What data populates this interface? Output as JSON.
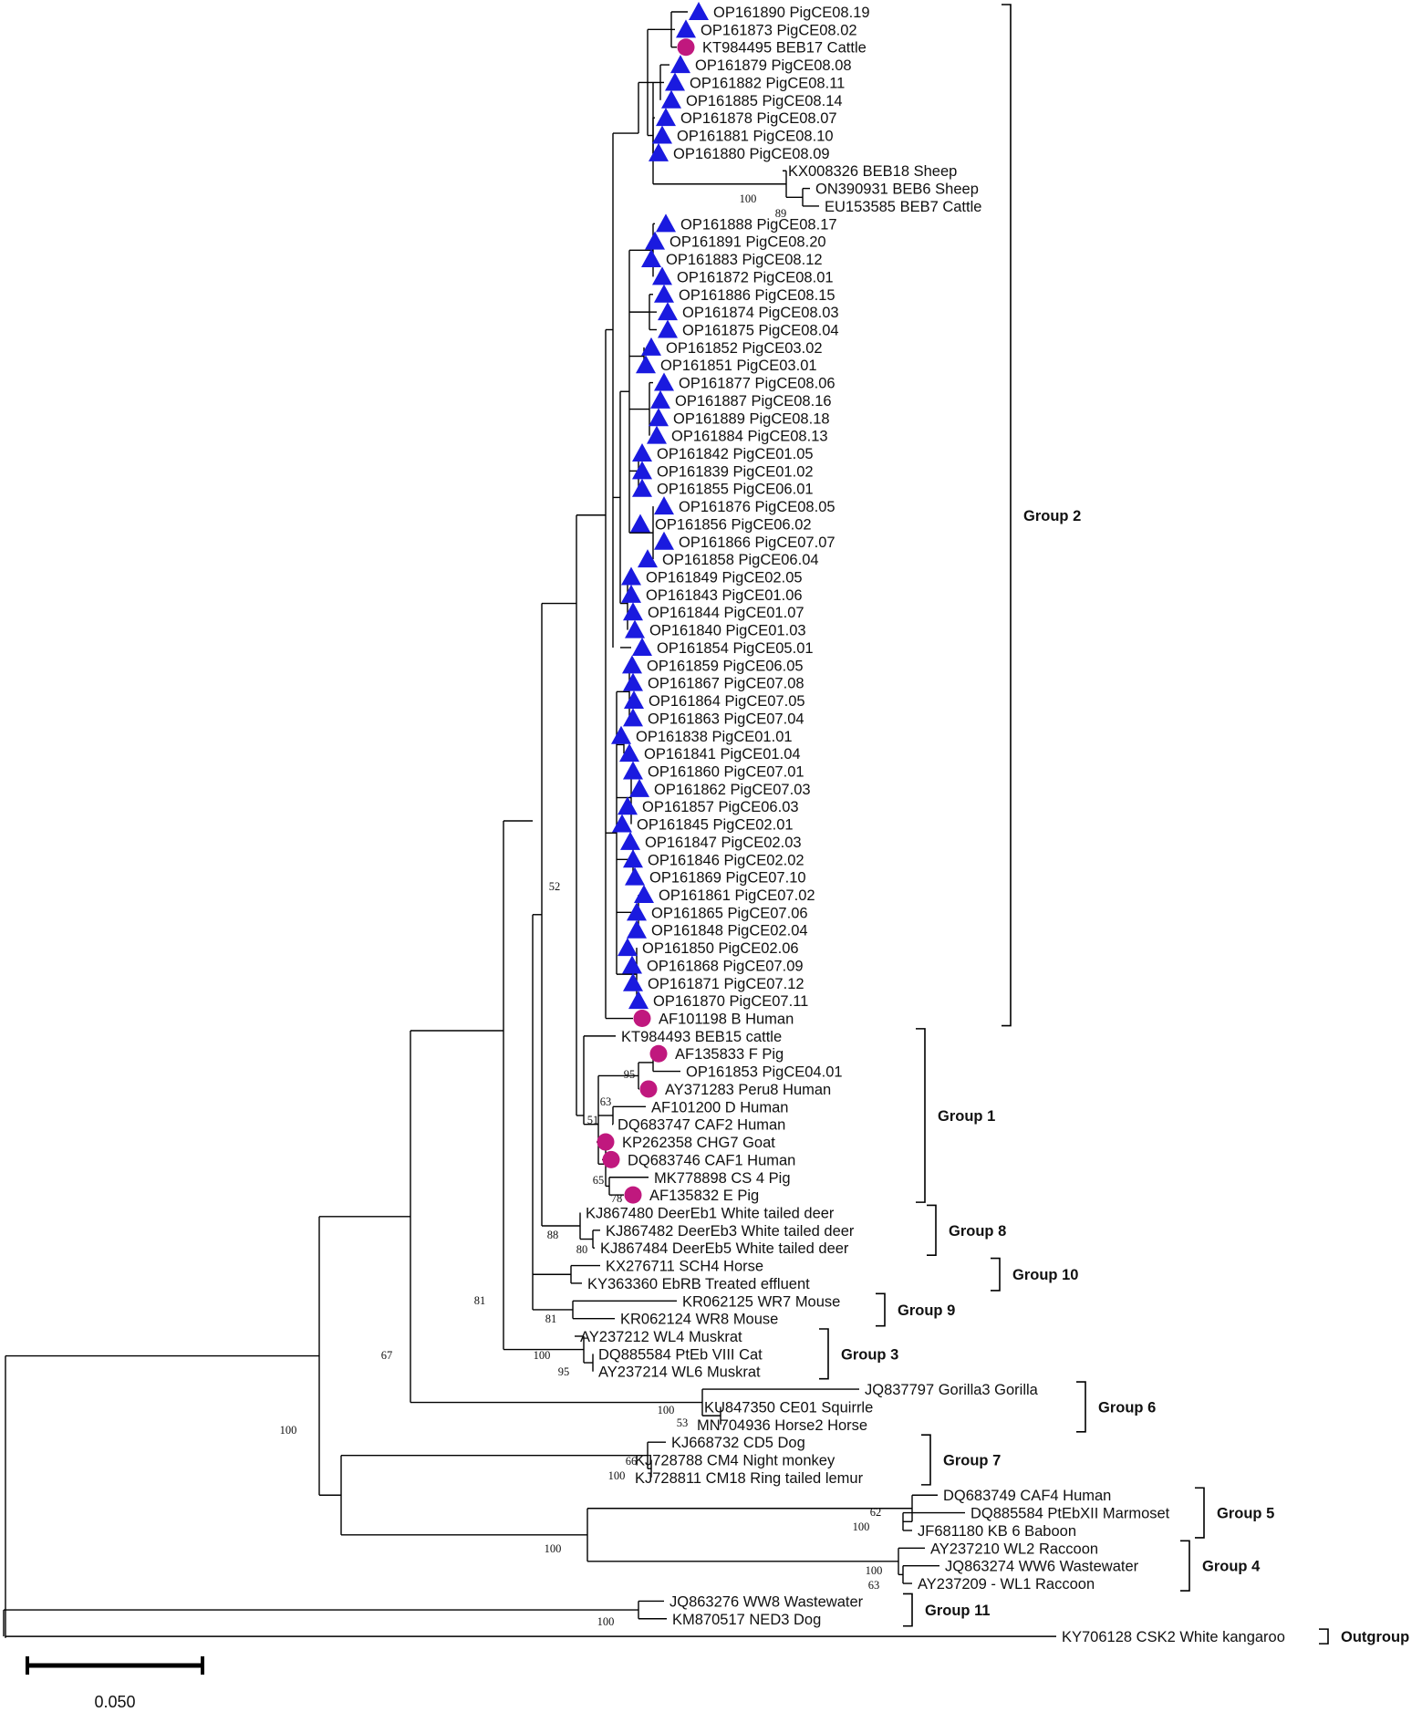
{
  "marker_colors": {
    "triangle": "#1a1adf",
    "circle": "#c0187e"
  },
  "tips": [
    {
      "label": "OP161890 PigCE08.19",
      "marker": "triangle"
    },
    {
      "label": "OP161873 PigCE08.02",
      "marker": "triangle"
    },
    {
      "label": "KT984495 BEB17 Cattle",
      "marker": "circle"
    },
    {
      "label": "OP161879 PigCE08.08",
      "marker": "triangle"
    },
    {
      "label": "OP161882 PigCE08.11",
      "marker": "triangle"
    },
    {
      "label": "OP161885 PigCE08.14",
      "marker": "triangle"
    },
    {
      "label": "OP161878 PigCE08.07",
      "marker": "triangle"
    },
    {
      "label": "OP161881 PigCE08.10",
      "marker": "triangle"
    },
    {
      "label": "OP161880 PigCE08.09",
      "marker": "triangle"
    },
    {
      "label": "KX008326 BEB18 Sheep",
      "marker": ""
    },
    {
      "label": "ON390931 BEB6 Sheep",
      "marker": ""
    },
    {
      "label": "EU153585 BEB7 Cattle",
      "marker": ""
    },
    {
      "label": "OP161888 PigCE08.17",
      "marker": "triangle"
    },
    {
      "label": "OP161891 PigCE08.20",
      "marker": "triangle"
    },
    {
      "label": "OP161883 PigCE08.12",
      "marker": "triangle"
    },
    {
      "label": "OP161872 PigCE08.01",
      "marker": "triangle"
    },
    {
      "label": "OP161886 PigCE08.15",
      "marker": "triangle"
    },
    {
      "label": "OP161874 PigCE08.03",
      "marker": "triangle"
    },
    {
      "label": "OP161875 PigCE08.04",
      "marker": "triangle"
    },
    {
      "label": "OP161852 PigCE03.02",
      "marker": "triangle"
    },
    {
      "label": "OP161851 PigCE03.01",
      "marker": "triangle"
    },
    {
      "label": "OP161877 PigCE08.06",
      "marker": "triangle"
    },
    {
      "label": "OP161887 PigCE08.16",
      "marker": "triangle"
    },
    {
      "label": "OP161889 PigCE08.18",
      "marker": "triangle"
    },
    {
      "label": "OP161884 PigCE08.13",
      "marker": "triangle"
    },
    {
      "label": "OP161842 PigCE01.05",
      "marker": "triangle"
    },
    {
      "label": "OP161839 PigCE01.02",
      "marker": "triangle"
    },
    {
      "label": "OP161855 PigCE06.01",
      "marker": "triangle"
    },
    {
      "label": "OP161876 PigCE08.05",
      "marker": "triangle"
    },
    {
      "label": "OP161856 PigCE06.02",
      "marker": "triangle"
    },
    {
      "label": "OP161866 PigCE07.07",
      "marker": "triangle"
    },
    {
      "label": "OP161858 PigCE06.04",
      "marker": "triangle"
    },
    {
      "label": "OP161849 PigCE02.05",
      "marker": "triangle"
    },
    {
      "label": "OP161843 PigCE01.06",
      "marker": "triangle"
    },
    {
      "label": "OP161844 PigCE01.07",
      "marker": "triangle"
    },
    {
      "label": "OP161840 PigCE01.03",
      "marker": "triangle"
    },
    {
      "label": "OP161854 PigCE05.01",
      "marker": "triangle"
    },
    {
      "label": "OP161859 PigCE06.05",
      "marker": "triangle"
    },
    {
      "label": "OP161867 PigCE07.08",
      "marker": "triangle"
    },
    {
      "label": "OP161864 PigCE07.05",
      "marker": "triangle"
    },
    {
      "label": "OP161863 PigCE07.04",
      "marker": "triangle"
    },
    {
      "label": "OP161838 PigCE01.01",
      "marker": "triangle"
    },
    {
      "label": "OP161841 PigCE01.04",
      "marker": "triangle"
    },
    {
      "label": "OP161860 PigCE07.01",
      "marker": "triangle"
    },
    {
      "label": "OP161862 PigCE07.03",
      "marker": "triangle"
    },
    {
      "label": "OP161857 PigCE06.03",
      "marker": "triangle"
    },
    {
      "label": "OP161845 PigCE02.01",
      "marker": "triangle"
    },
    {
      "label": "OP161847 PigCE02.03",
      "marker": "triangle"
    },
    {
      "label": "OP161846 PigCE02.02",
      "marker": "triangle"
    },
    {
      "label": "OP161869 PigCE07.10",
      "marker": "triangle"
    },
    {
      "label": "OP161861 PigCE07.02",
      "marker": "triangle"
    },
    {
      "label": "OP161865 PigCE07.06",
      "marker": "triangle"
    },
    {
      "label": "OP161848 PigCE02.04",
      "marker": "triangle"
    },
    {
      "label": "OP161850 PigCE02.06",
      "marker": "triangle"
    },
    {
      "label": "OP161868 PigCE07.09",
      "marker": "triangle"
    },
    {
      "label": "OP161871 PigCE07.12",
      "marker": "triangle"
    },
    {
      "label": "OP161870 PigCE07.11",
      "marker": "triangle"
    },
    {
      "label": "AF101198 B Human",
      "marker": "circle"
    },
    {
      "label": "KT984493 BEB15 cattle",
      "marker": ""
    },
    {
      "label": "AF135833 F Pig",
      "marker": "circle"
    },
    {
      "label": "OP161853 PigCE04.01",
      "marker": ""
    },
    {
      "label": "AY371283 Peru8 Human",
      "marker": "circle"
    },
    {
      "label": "AF101200 D Human",
      "marker": ""
    },
    {
      "label": "DQ683747 CAF2 Human",
      "marker": ""
    },
    {
      "label": "KP262358 CHG7 Goat",
      "marker": "circle"
    },
    {
      "label": "DQ683746 CAF1 Human",
      "marker": "circle"
    },
    {
      "label": "MK778898 CS 4 Pig",
      "marker": ""
    },
    {
      "label": "AF135832 E Pig",
      "marker": "circle"
    },
    {
      "label": "KJ867480 DeerEb1 White tailed deer",
      "marker": ""
    },
    {
      "label": "KJ867482 DeerEb3 White tailed deer",
      "marker": ""
    },
    {
      "label": "KJ867484 DeerEb5 White tailed deer",
      "marker": ""
    },
    {
      "label": "KX276711 SCH4 Horse",
      "marker": ""
    },
    {
      "label": "KY363360 EbRB Treated effluent",
      "marker": ""
    },
    {
      "label": "KR062125 WR7 Mouse",
      "marker": ""
    },
    {
      "label": "KR062124 WR8 Mouse",
      "marker": ""
    },
    {
      "label": "AY237212 WL4 Muskrat",
      "marker": ""
    },
    {
      "label": "DQ885584 PtEb VIII Cat",
      "marker": ""
    },
    {
      "label": "AY237214 WL6 Muskrat",
      "marker": ""
    },
    {
      "label": "JQ837797 Gorilla3 Gorilla",
      "marker": ""
    },
    {
      "label": "KU847350 CE01 Squirrle",
      "marker": ""
    },
    {
      "label": "MN704936 Horse2 Horse",
      "marker": ""
    },
    {
      "label": "KJ668732 CD5 Dog",
      "marker": ""
    },
    {
      "label": "KJ728788 CM4 Night monkey",
      "marker": ""
    },
    {
      "label": "KJ728811 CM18 Ring tailed lemur",
      "marker": ""
    },
    {
      "label": "DQ683749 CAF4 Human",
      "marker": ""
    },
    {
      "label": "DQ885584 PtEbXII Marmoset",
      "marker": ""
    },
    {
      "label": "JF681180 KB 6 Baboon",
      "marker": ""
    },
    {
      "label": "AY237210 WL2 Raccoon",
      "marker": ""
    },
    {
      "label": "JQ863274 WW6 Wastewater",
      "marker": ""
    },
    {
      "label": "AY237209 - WL1 Raccoon",
      "marker": ""
    },
    {
      "label": "JQ863276 WW8 Wastewater",
      "marker": ""
    },
    {
      "label": "KM870517 NED3 Dog",
      "marker": ""
    },
    {
      "label": "KY706128 CSK2 White kangaroo",
      "marker": ""
    }
  ],
  "bootstrap_values": [
    "100",
    "89",
    "52",
    "95",
    "63",
    "51",
    "65",
    "78",
    "88",
    "80",
    "81",
    "81",
    "100",
    "95",
    "67",
    "100",
    "53",
    "100",
    "66",
    "100",
    "100",
    "62",
    "100",
    "100",
    "63",
    "100",
    "100"
  ],
  "groups": [
    "Group 2",
    "Group 1",
    "Group 8",
    "Group 10",
    "Group 9",
    "Group 3",
    "Group 6",
    "Group 7",
    "Group 5",
    "Group 4",
    "Group 11",
    "Outgroup"
  ],
  "scale_bar": {
    "label": "0.050",
    "value": 0.05
  }
}
